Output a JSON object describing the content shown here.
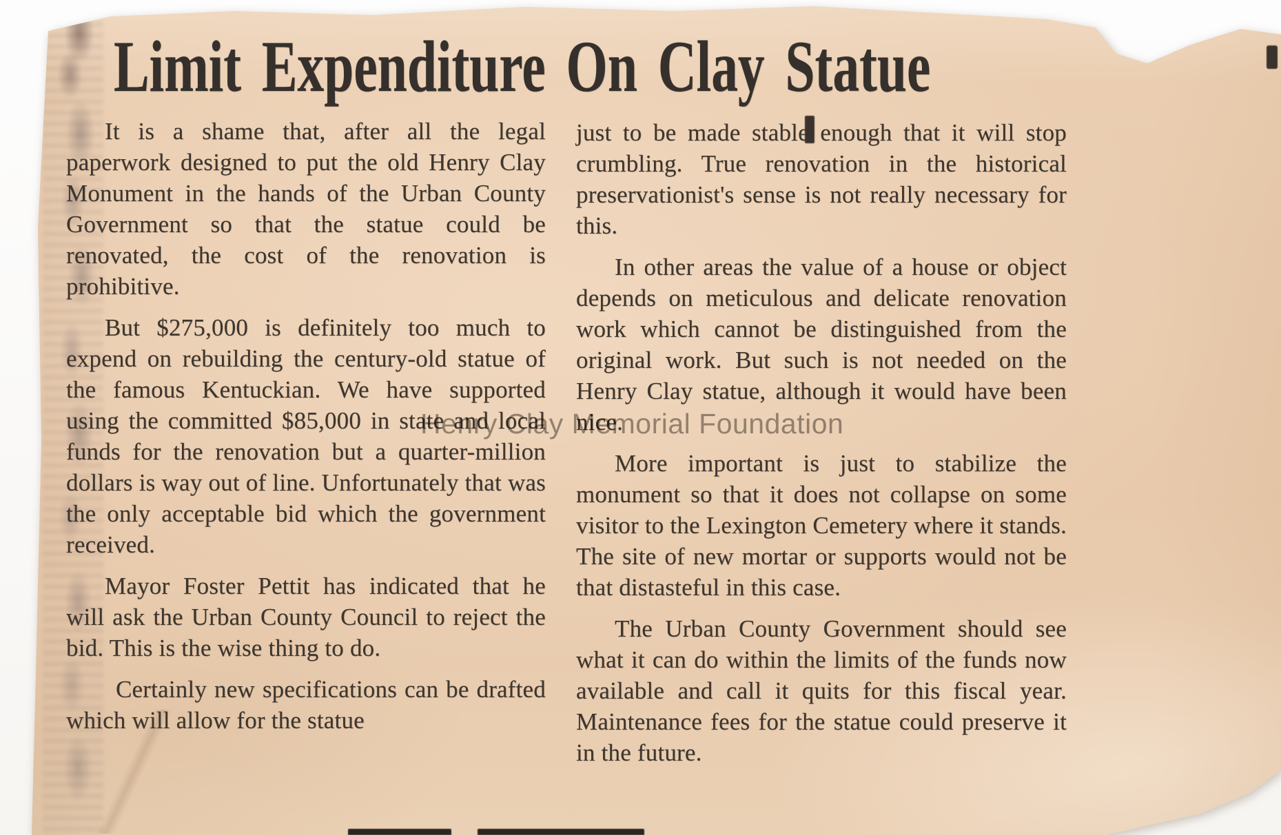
{
  "article": {
    "headline": "Limit Expenditure On Clay Statue",
    "watermark": "Henry Clay Memorial Foundation",
    "columns": {
      "left": [
        "It is a shame that, after all the legal paperwork designed to put the old Henry Clay Monument in the hands of the Urban County Government so that the statue could be renovated, the cost of the renovation is prohibitive.",
        "But $275,000 is definitely too much to expend on rebuilding the century-old statue of the famous Kentuckian. We have supported using the committed $85,000 in state and local funds for the renovation but a quarter-million dollars is way out of line. Unfortunately that was the only acceptable bid which the government received.",
        "Mayor Foster Pettit has indicated that he will ask the Urban County Council to reject the bid. This is the wise thing to do.",
        "Certainly new specifications can be drafted which will allow for the statue"
      ],
      "right": [
        "just to be made stable enough that it will stop crumbling. True renovation in the historical preservationist's sense is not really necessary for this.",
        "In other areas the value of a house or object depends on meticulous and delicate renovation work which cannot be distinguished from the original work. But such is not needed on the Henry Clay statue, although it would have been nice.",
        "More important is just to stabilize the monument so that it does not collapse on some visitor to the Lexington Cemetery where it stands. The site of new mortar or supports would not be that distasteful in this case.",
        "The Urban County Government should see what it can do within the limits of the funds now available and call it quits for this fiscal year. Maintenance fees for the statue could preserve it in the future."
      ]
    },
    "colors": {
      "paper": "#e9cbae",
      "ink": "#3e362e",
      "headline_ink": "#35302c",
      "watermark": "#625d58",
      "background": "#ffffff"
    }
  }
}
